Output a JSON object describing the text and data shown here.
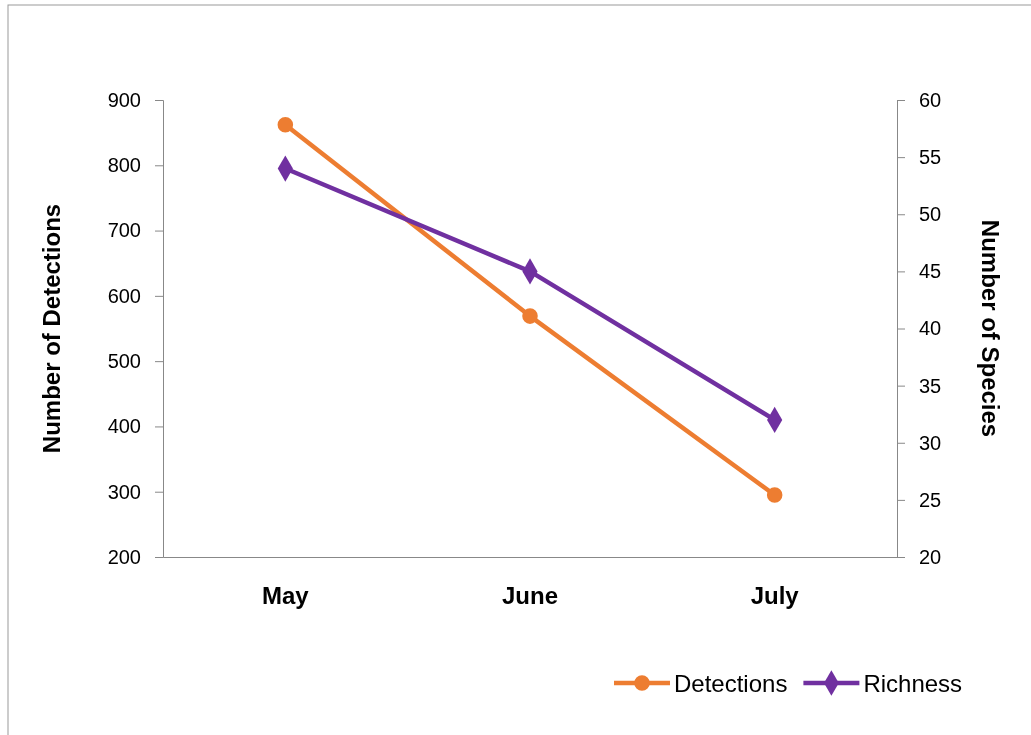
{
  "chart_data": {
    "type": "line",
    "categories": [
      "May",
      "June",
      "July"
    ],
    "ylabel": "Number of Detections",
    "y2label": "Number of Species",
    "ylim": [
      200,
      900
    ],
    "yticks": [
      200,
      300,
      400,
      500,
      600,
      700,
      800,
      900
    ],
    "y2lim": [
      20,
      60
    ],
    "y2ticks": [
      20,
      25,
      30,
      35,
      40,
      45,
      50,
      55,
      60
    ],
    "legend": "bottom right",
    "grid": false,
    "series": [
      {
        "name": "Detections",
        "color": "#ed7d31",
        "marker": "circle",
        "values": [
          862,
          569,
          295
        ]
      },
      {
        "name": "Richness",
        "color": "#7030a0",
        "marker": "diamond",
        "axis": "y2",
        "values": [
          54,
          45,
          32
        ]
      }
    ]
  }
}
